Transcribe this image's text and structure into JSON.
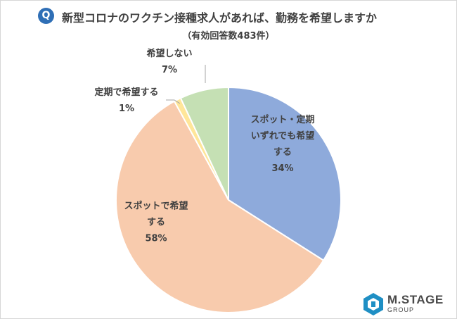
{
  "header": {
    "badge": "Q",
    "title": "新型コロナのワクチン接種求人があれば、勤務を希望しますか",
    "subtitle": "（有効回答数483件）"
  },
  "chart_data": {
    "type": "pie",
    "start": "12 o'clock, clockwise",
    "slices": [
      {
        "label_lines": [
          "スポット・定期",
          "いずれでも希望",
          "する"
        ],
        "pct_label": "34%",
        "value": 34,
        "color": "#8eaadb"
      },
      {
        "label_lines": [
          "スポットで希望",
          "する"
        ],
        "pct_label": "58%",
        "value": 58,
        "color": "#f8cbad"
      },
      {
        "label_lines": [
          "定期で希望する"
        ],
        "pct_label": "1%",
        "value": 1,
        "color": "#ffe699"
      },
      {
        "label_lines": [
          "希望しない"
        ],
        "pct_label": "7%",
        "value": 7,
        "color": "#c5e0b4"
      }
    ]
  },
  "logo": {
    "name": "M.STAGE",
    "sub": "GROUP",
    "color": "#1f8fc4"
  }
}
